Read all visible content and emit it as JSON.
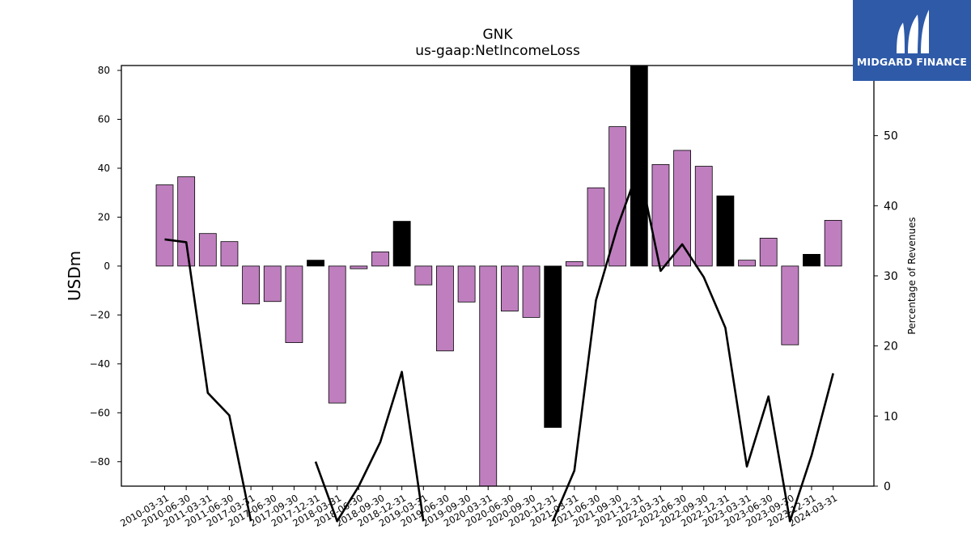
{
  "logo": {
    "text": "MIDGARD FINANCE",
    "icon": "midgard-logo-icon",
    "background": "#2e5aa8"
  },
  "chart_data": {
    "type": "bar",
    "title": "GNK",
    "subtitle": "us-gaap:NetIncomeLoss",
    "ylabel": "USDm",
    "y2label": "Percentage of Revenues",
    "ylim": [
      -90,
      82
    ],
    "y2lim": [
      0,
      60
    ],
    "yticks": [
      -80,
      -60,
      -40,
      -20,
      0,
      20,
      40,
      60,
      80
    ],
    "y2ticks": [
      0,
      10,
      20,
      30,
      40,
      50
    ],
    "colors": {
      "quarter_bar": "#bf7fbf",
      "annual_bar": "#000000",
      "line": "#000000"
    },
    "categories": [
      "2010-03-31",
      "2010-06-30",
      "2011-03-31",
      "2011-06-30",
      "2017-03-31",
      "2017-06-30",
      "2017-09-30",
      "2017-12-31",
      "2018-03-31",
      "2018-06-30",
      "2018-09-30",
      "2018-12-31",
      "2019-03-31",
      "2019-06-30",
      "2019-09-30",
      "2020-03-31",
      "2020-06-30",
      "2020-09-30",
      "2020-12-31",
      "2021-03-31",
      "2021-06-30",
      "2021-09-30",
      "2021-12-31",
      "2022-03-31",
      "2022-06-30",
      "2022-09-30",
      "2022-12-31",
      "2023-03-31",
      "2023-06-30",
      "2023-09-30",
      "2023-12-31",
      "2024-03-31"
    ],
    "series": [
      {
        "values": [
          33.2,
          36.5,
          13.3,
          10.0,
          -15.5,
          -14.5,
          -31.3,
          2.4,
          -56.0,
          -1.1,
          5.8,
          18.3,
          -7.7,
          -34.7,
          -14.7,
          -92.0,
          -18.4,
          -21.0,
          -66.0,
          1.8,
          32.0,
          57.0,
          84.0,
          41.5,
          47.3,
          40.8,
          28.7,
          2.4,
          11.4,
          -32.2,
          4.8,
          18.7
        ],
        "annual": [
          false,
          false,
          false,
          false,
          false,
          false,
          false,
          true,
          false,
          false,
          false,
          true,
          false,
          false,
          false,
          false,
          false,
          false,
          true,
          false,
          false,
          false,
          true,
          false,
          false,
          false,
          true,
          false,
          false,
          false,
          true,
          false
        ]
      },
      {
        "values": [
          35.2,
          34.8,
          13.3,
          10.1,
          -5.0,
          null,
          null,
          3.5,
          -5.0,
          0.0,
          6.3,
          16.3,
          -5.0,
          null,
          null,
          null,
          null,
          null,
          -5.0,
          2.2,
          26.5,
          37.0,
          45.5,
          30.7,
          34.5,
          29.8,
          22.6,
          2.8,
          12.8,
          -5.0,
          4.4,
          16.1
        ]
      }
    ]
  }
}
